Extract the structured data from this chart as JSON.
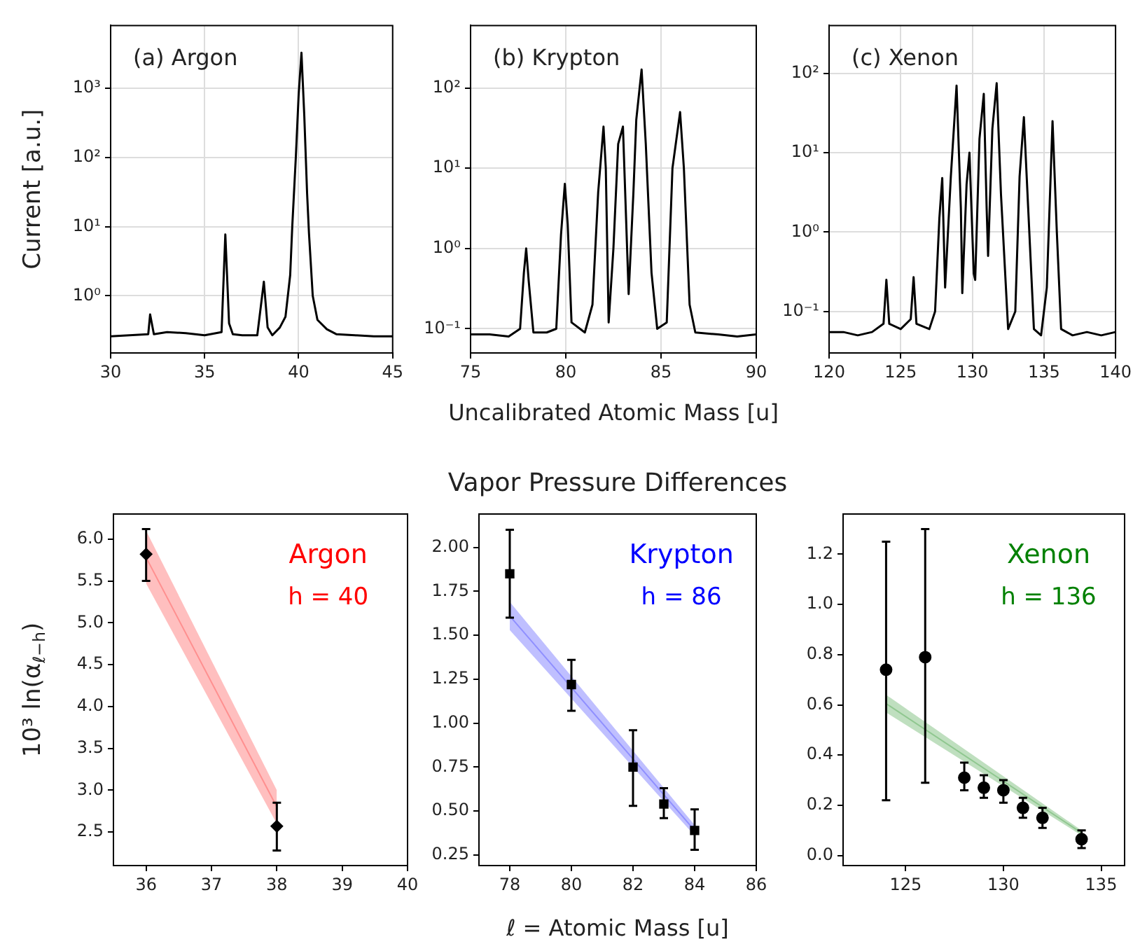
{
  "chart_data": [
    {
      "type": "line",
      "ylabel": "Current [a.u.]",
      "annotations": [
        "(a) Argon"
      ],
      "color": "#000000",
      "marker": "none",
      "grid": true,
      "log": "y",
      "xlim": [
        30,
        45
      ],
      "xticks": [
        30,
        35,
        40,
        45
      ],
      "ylim": [
        0.15,
        8000
      ],
      "yticks": [
        {
          "value": 1,
          "label": "10⁰"
        },
        {
          "value": 10,
          "label": "10¹"
        },
        {
          "value": 100,
          "label": "10²"
        },
        {
          "value": 1000,
          "label": "10³"
        }
      ],
      "x": [
        30,
        31,
        32,
        32.1,
        32.3,
        33,
        34,
        35,
        35.9,
        36.1,
        36.3,
        36.5,
        37,
        37.8,
        38.15,
        38.35,
        38.6,
        39.0,
        39.3,
        39.55,
        39.66,
        39.85,
        40.0,
        40.15,
        40.3,
        40.45,
        40.55,
        40.75,
        41.0,
        41.5,
        42,
        43,
        44,
        45
      ],
      "values": [
        0.26,
        0.27,
        0.28,
        0.54,
        0.28,
        0.3,
        0.29,
        0.27,
        0.3,
        7.7,
        0.4,
        0.28,
        0.27,
        0.27,
        1.6,
        0.35,
        0.27,
        0.35,
        0.5,
        2,
        10,
        100,
        800,
        3240,
        400,
        30,
        8,
        1,
        0.45,
        0.33,
        0.28,
        0.27,
        0.26,
        0.26
      ]
    },
    {
      "type": "line",
      "xlabel": "Uncalibrated Atomic Mass [u]",
      "annotations": [
        "(b) Krypton"
      ],
      "color": "#000000",
      "marker": "none",
      "grid": true,
      "log": "y",
      "xlim": [
        75,
        90
      ],
      "xticks": [
        75,
        80,
        85,
        90
      ],
      "ylim": [
        0.05,
        600
      ],
      "yticks": [
        {
          "value": 0.1,
          "label": "10⁻¹"
        },
        {
          "value": 1,
          "label": "10⁰"
        },
        {
          "value": 10,
          "label": "10¹"
        },
        {
          "value": 100,
          "label": "10²"
        }
      ],
      "x": [
        75,
        76,
        77,
        77.6,
        77.8,
        77.92,
        78.05,
        78.3,
        79,
        79.5,
        79.75,
        79.95,
        80.1,
        80.3,
        81,
        81.4,
        81.7,
        81.98,
        82.1,
        82.25,
        82.5,
        82.75,
        83.0,
        83.15,
        83.3,
        83.55,
        83.7,
        83.98,
        84.2,
        84.5,
        84.8,
        85.3,
        85.6,
        86.0,
        86.2,
        86.5,
        86.8,
        88,
        89,
        90
      ],
      "values": [
        0.085,
        0.085,
        0.08,
        0.1,
        0.5,
        1.0,
        0.4,
        0.09,
        0.09,
        0.1,
        1.5,
        6.4,
        2,
        0.12,
        0.09,
        0.2,
        5,
        33,
        10,
        0.12,
        1,
        20,
        33,
        3,
        0.27,
        5,
        40,
        170,
        20,
        0.5,
        0.1,
        0.12,
        10,
        50,
        10,
        0.2,
        0.09,
        0.085,
        0.08,
        0.085
      ]
    },
    {
      "type": "line",
      "annotations": [
        "(c) Xenon"
      ],
      "color": "#000000",
      "marker": "none",
      "grid": true,
      "log": "y",
      "xlim": [
        120,
        140
      ],
      "xticks": [
        120,
        125,
        130,
        135,
        140
      ],
      "ylim": [
        0.03,
        400
      ],
      "yticks": [
        {
          "value": 0.1,
          "label": "10⁻¹"
        },
        {
          "value": 1,
          "label": "10⁰"
        },
        {
          "value": 10,
          "label": "10¹"
        },
        {
          "value": 100,
          "label": "10²"
        }
      ],
      "x": [
        120,
        121,
        122,
        123,
        123.8,
        124.0,
        124.2,
        125,
        125.7,
        125.9,
        126.1,
        127,
        127.4,
        127.7,
        127.9,
        128.1,
        128.5,
        128.9,
        129.2,
        129.3,
        129.6,
        129.8,
        130.1,
        130.2,
        130.5,
        130.8,
        131.0,
        131.1,
        131.4,
        131.7,
        132.0,
        132.5,
        133.0,
        133.3,
        133.6,
        133.9,
        134.3,
        134.8,
        135.2,
        135.6,
        135.9,
        136.2,
        137,
        138,
        139,
        140
      ],
      "values": [
        0.055,
        0.055,
        0.05,
        0.055,
        0.07,
        0.25,
        0.07,
        0.06,
        0.08,
        0.27,
        0.07,
        0.06,
        0.1,
        1.5,
        4.8,
        0.2,
        5,
        70,
        2,
        0.17,
        4,
        10,
        0.3,
        0.25,
        15,
        55,
        2,
        0.5,
        20,
        75,
        3,
        0.06,
        0.1,
        5,
        28,
        2,
        0.06,
        0.05,
        0.2,
        25,
        1,
        0.06,
        0.05,
        0.055,
        0.05,
        0.055
      ]
    },
    {
      "type": "scatter",
      "ylabel": "10³ ln(α$_{ℓ−h}$)",
      "annotations": [
        "Argon",
        "h = 40"
      ],
      "xlim": [
        35.5,
        40
      ],
      "xticks": [
        36,
        37,
        38,
        39,
        40
      ],
      "ylim": [
        2.1,
        6.3
      ],
      "yticks": [
        {
          "value": 2.5,
          "label": "2.5"
        },
        {
          "value": 3,
          "label": "3.0"
        },
        {
          "value": 3.5,
          "label": "3.5"
        },
        {
          "value": 4,
          "label": "4.0"
        },
        {
          "value": 4.5,
          "label": "4.5"
        },
        {
          "value": 5,
          "label": "5.0"
        },
        {
          "value": 5.5,
          "label": "5.5"
        },
        {
          "value": 6,
          "label": "6.0"
        }
      ],
      "series": [
        {
          "type": "scatter",
          "marker": "diamond",
          "color": "#000000",
          "x": [
            36,
            38
          ],
          "values": [
            5.82,
            2.57
          ],
          "errors": [
            [
              5.5,
              6.12
            ],
            [
              2.28,
              2.85
            ]
          ]
        },
        {
          "type": "line",
          "color": "#ff0000",
          "x": [
            36,
            38
          ],
          "values": [
            5.78,
            2.8
          ],
          "lower": [
            5.47,
            2.6
          ],
          "upper": [
            6.1,
            3.0
          ]
        }
      ]
    },
    {
      "type": "scatter",
      "title": "Vapor Pressure Differences",
      "xlabel": "ℓ = Atomic Mass [u]",
      "annotations": [
        "Krypton",
        "h = 86"
      ],
      "xlim": [
        77,
        86
      ],
      "xticks": [
        78,
        80,
        82,
        84,
        86
      ],
      "ylim": [
        0.19,
        2.19
      ],
      "yticks": [
        {
          "value": 0.25,
          "label": "0.25"
        },
        {
          "value": 0.5,
          "label": "0.50"
        },
        {
          "value": 0.75,
          "label": "0.75"
        },
        {
          "value": 1,
          "label": "1.00"
        },
        {
          "value": 1.25,
          "label": "1.25"
        },
        {
          "value": 1.5,
          "label": "1.50"
        },
        {
          "value": 1.75,
          "label": "1.75"
        },
        {
          "value": 2,
          "label": "2.00"
        }
      ],
      "series": [
        {
          "type": "scatter",
          "marker": "square",
          "color": "#000000",
          "x": [
            78,
            80,
            82,
            83,
            84
          ],
          "values": [
            1.85,
            1.22,
            0.75,
            0.54,
            0.39
          ],
          "errors": [
            [
              1.6,
              2.1
            ],
            [
              1.07,
              1.36
            ],
            [
              0.53,
              0.96
            ],
            [
              0.46,
              0.63
            ],
            [
              0.28,
              0.51
            ]
          ]
        },
        {
          "type": "line",
          "color": "#0000ff",
          "x": [
            78,
            84
          ],
          "values": [
            1.61,
            0.39
          ],
          "lower": [
            1.53,
            0.36
          ],
          "upper": [
            1.69,
            0.42
          ]
        }
      ]
    },
    {
      "type": "scatter",
      "annotations": [
        "Xenon",
        "h = 136"
      ],
      "xlim": [
        121.8,
        136.2
      ],
      "xticks": [
        125,
        130,
        135
      ],
      "ylim": [
        -0.04,
        1.36
      ],
      "yticks": [
        {
          "value": 0,
          "label": "0.0"
        },
        {
          "value": 0.2,
          "label": "0.2"
        },
        {
          "value": 0.4,
          "label": "0.4"
        },
        {
          "value": 0.6,
          "label": "0.6"
        },
        {
          "value": 0.8,
          "label": "0.8"
        },
        {
          "value": 1,
          "label": "1.0"
        },
        {
          "value": 1.2,
          "label": "1.2"
        }
      ],
      "series": [
        {
          "type": "scatter",
          "marker": "circle",
          "color": "#000000",
          "x": [
            124,
            126,
            128,
            129,
            130,
            131,
            132,
            134
          ],
          "values": [
            0.74,
            0.79,
            0.31,
            0.27,
            0.26,
            0.19,
            0.15,
            0.065
          ],
          "errors": [
            [
              0.22,
              1.25
            ],
            [
              0.29,
              1.3
            ],
            [
              0.26,
              0.37
            ],
            [
              0.23,
              0.32
            ],
            [
              0.21,
              0.3
            ],
            [
              0.15,
              0.23
            ],
            [
              0.11,
              0.19
            ],
            [
              0.03,
              0.1
            ]
          ]
        },
        {
          "type": "line",
          "color": "#008000",
          "x": [
            124,
            134
          ],
          "values": [
            0.605,
            0.09
          ],
          "lower": [
            0.57,
            0.08
          ],
          "upper": [
            0.64,
            0.1
          ]
        }
      ]
    }
  ]
}
